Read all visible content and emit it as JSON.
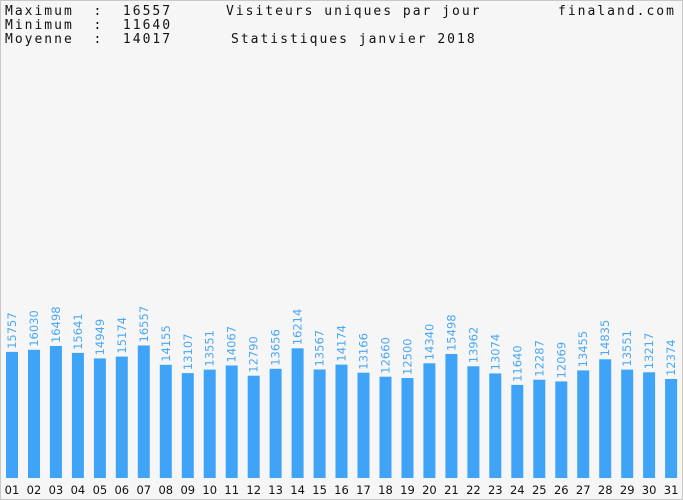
{
  "header": {
    "max_label": "Maximum  :  16557",
    "min_label": "Minimum  :  11640",
    "avg_label": "Moyenne  :  14017",
    "title": "Visiteurs uniques par jour",
    "subtitle": "Statistiques janvier 2018",
    "site": "finaland.com"
  },
  "colors": {
    "bar": "#3fa3f7",
    "value_label": "#4aa8f5",
    "axis_label": "#111111",
    "background": "#f6f6f6"
  },
  "chart_data": {
    "type": "bar",
    "title": "Visiteurs uniques par jour",
    "subtitle": "Statistiques janvier 2018",
    "xlabel": "",
    "ylabel": "",
    "grid": false,
    "ylim": [
      0,
      20000
    ],
    "categories": [
      "01",
      "02",
      "03",
      "04",
      "05",
      "06",
      "07",
      "08",
      "09",
      "10",
      "11",
      "12",
      "13",
      "14",
      "15",
      "16",
      "17",
      "18",
      "19",
      "20",
      "21",
      "22",
      "23",
      "24",
      "25",
      "26",
      "27",
      "28",
      "29",
      "30",
      "31"
    ],
    "values": [
      15757,
      16030,
      16498,
      15641,
      14949,
      15174,
      16557,
      14155,
      13107,
      13551,
      14067,
      12790,
      13656,
      16214,
      13567,
      14174,
      13166,
      12660,
      12500,
      14340,
      15498,
      13962,
      13074,
      11640,
      12287,
      12069,
      13455,
      14835,
      13551,
      13217,
      12374
    ]
  }
}
